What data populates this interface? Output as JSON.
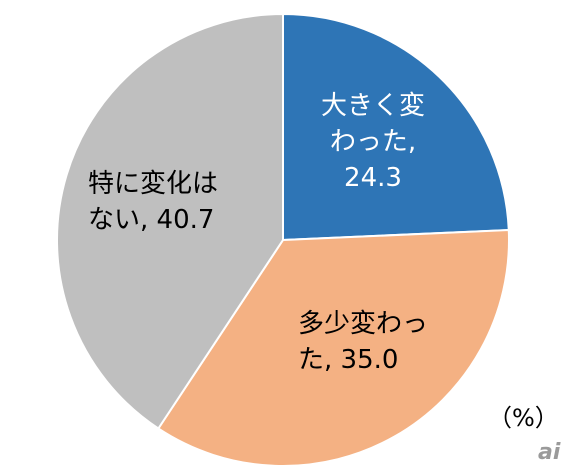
{
  "chart_data": {
    "type": "pie",
    "categories": [
      "大きく変わった",
      "多少変わった",
      "特に変化はない"
    ],
    "values": [
      24.3,
      35.0,
      40.7
    ],
    "value_labels": [
      "24.3",
      "35.0",
      "40.7"
    ],
    "label_separator": ",",
    "colors": [
      "#2e75b6",
      "#f4b183",
      "#bfbfbf"
    ],
    "unit": "（%）",
    "watermark": "ai"
  }
}
